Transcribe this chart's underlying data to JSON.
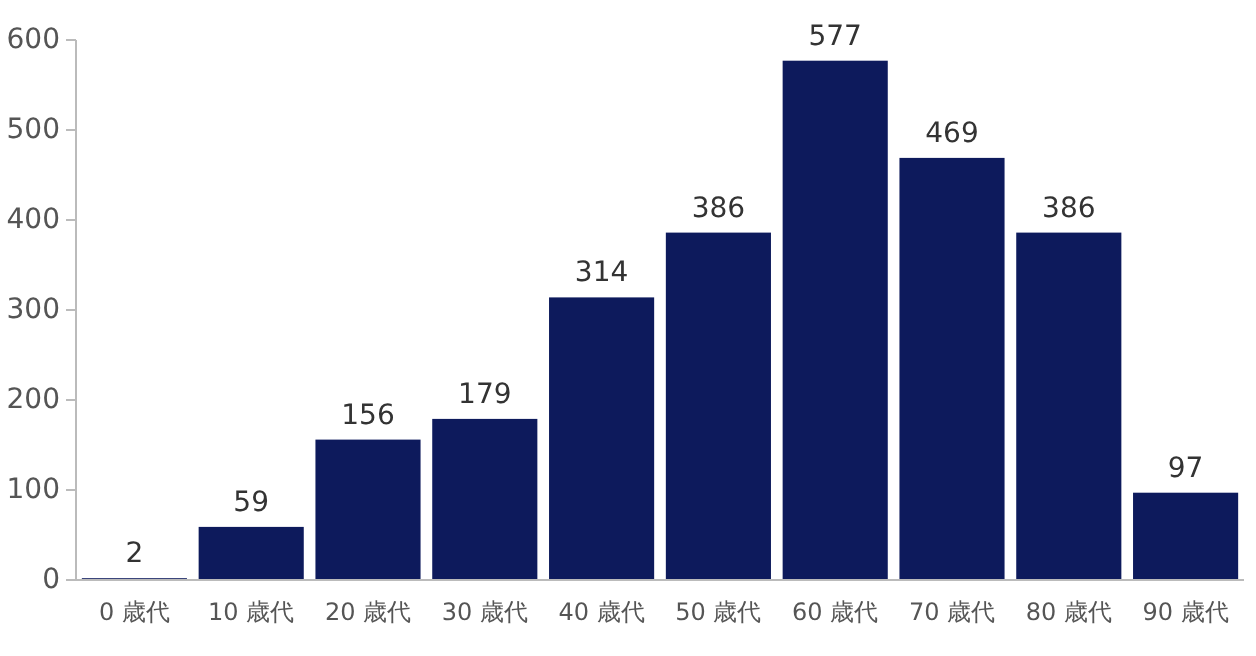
{
  "chart_data": {
    "type": "bar",
    "categories": [
      "0 歳代",
      "10 歳代",
      "20 歳代",
      "30 歳代",
      "40 歳代",
      "50 歳代",
      "60 歳代",
      "70 歳代",
      "80 歳代",
      "90 歳代"
    ],
    "values": [
      2,
      59,
      156,
      179,
      314,
      386,
      577,
      469,
      386,
      97
    ],
    "color": "#0d1a5c",
    "ylim": [
      0,
      600
    ],
    "yticks": [
      0,
      100,
      200,
      300,
      400,
      500,
      600
    ],
    "data_labels": true
  }
}
